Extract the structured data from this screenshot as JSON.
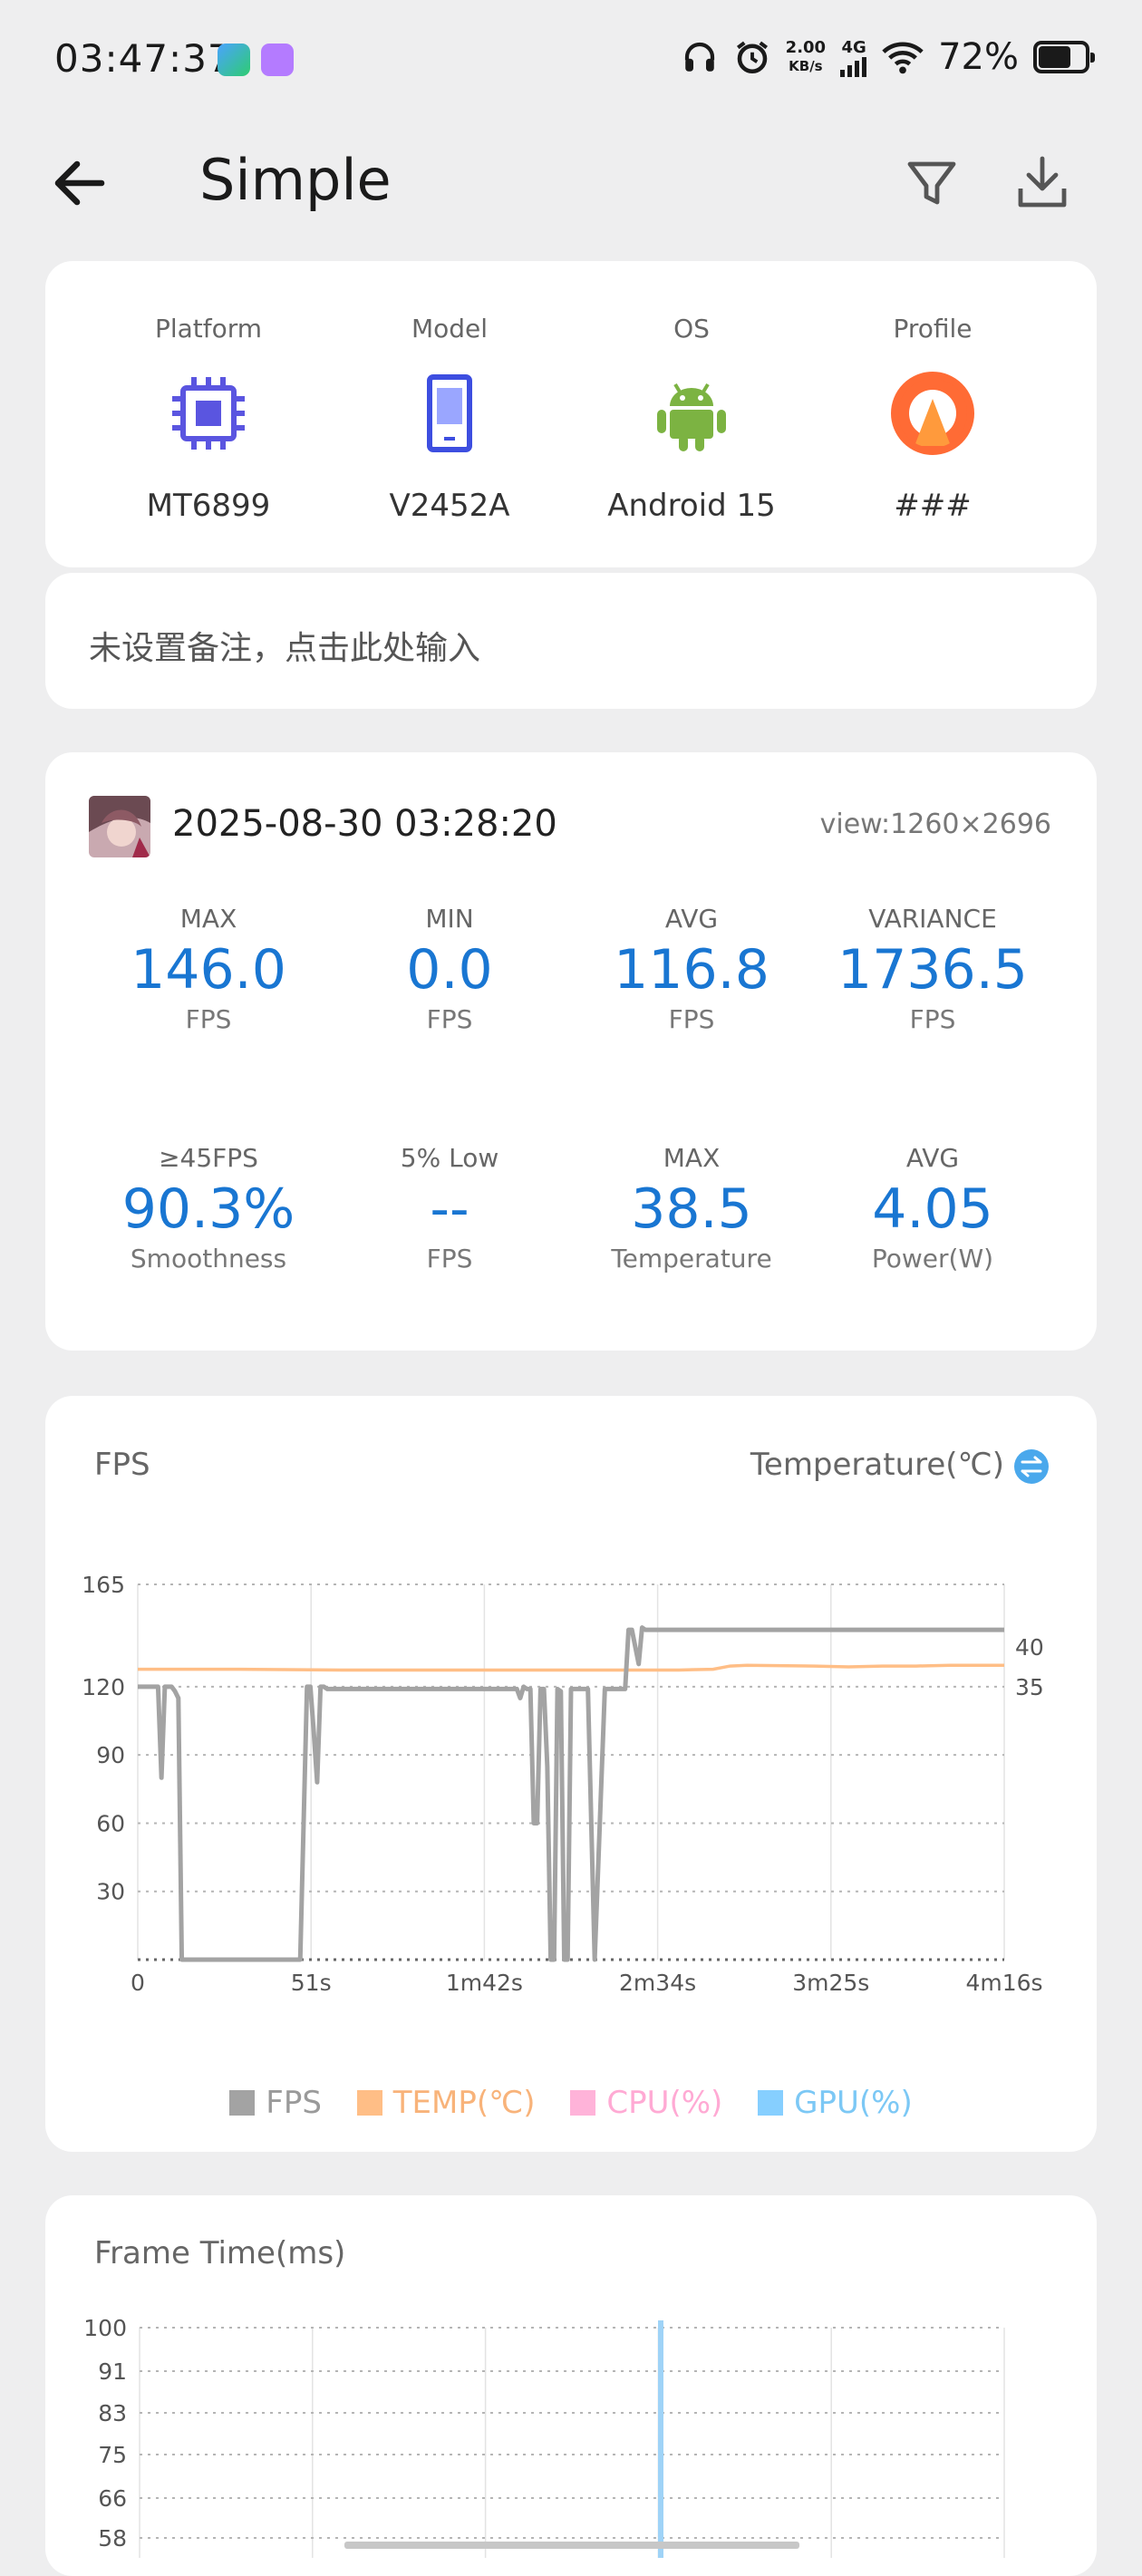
{
  "status_bar": {
    "time": "03:47:37",
    "net_speed_value": "2.00",
    "net_speed_unit": "KB/s",
    "network": "4G",
    "battery": "72%",
    "battery_level": 0.72
  },
  "app_bar": {
    "title": "Simple"
  },
  "device_info": [
    {
      "label": "Platform",
      "value": "MT6899",
      "icon": "chip-icon"
    },
    {
      "label": "Model",
      "value": "V2452A",
      "icon": "phone-icon"
    },
    {
      "label": "OS",
      "value": "Android 15",
      "icon": "android-icon"
    },
    {
      "label": "Profile",
      "value": "###",
      "icon": "profile-icon"
    }
  ],
  "note": {
    "placeholder": "未设置备注，点击此处输入"
  },
  "session": {
    "datetime": "2025-08-30 03:28:20",
    "view": "view:1260×2696",
    "stats": [
      {
        "label": "MAX",
        "value": "146.0",
        "unit": "FPS"
      },
      {
        "label": "MIN",
        "value": "0.0",
        "unit": "FPS"
      },
      {
        "label": "AVG",
        "value": "116.8",
        "unit": "FPS"
      },
      {
        "label": "VARIANCE",
        "value": "1736.5",
        "unit": "FPS"
      },
      {
        "label": "≥45FPS",
        "value": "90.3%",
        "unit": "Smoothness"
      },
      {
        "label": "5% Low",
        "value": "--",
        "unit": "FPS"
      },
      {
        "label": "MAX",
        "value": "38.5",
        "unit": "Temperature"
      },
      {
        "label": "AVG",
        "value": "4.05",
        "unit": "Power(W)"
      }
    ]
  },
  "fps_chart": {
    "title": "FPS",
    "right_title": "Temperature(℃)",
    "legend": [
      {
        "label": "FPS",
        "color": "#a3a3a3"
      },
      {
        "label": "TEMP(℃)",
        "color": "#ffbe86"
      },
      {
        "label": "CPU(%)",
        "color": "#ffb3d9"
      },
      {
        "label": "GPU(%)",
        "color": "#86cfff"
      }
    ]
  },
  "frame_chart": {
    "title": "Frame Time(ms)"
  },
  "chart_data": [
    {
      "type": "line",
      "title": "FPS",
      "x_ticks": [
        "0",
        "51s",
        "1m42s",
        "2m34s",
        "3m25s",
        "4m16s"
      ],
      "x_range_s": [
        0,
        256
      ],
      "y_ticks": [
        165,
        120,
        90,
        60,
        30
      ],
      "ylim": [
        0,
        165
      ],
      "y2_ticks": [
        40,
        35
      ],
      "y2label": "Temperature(℃)",
      "series": [
        {
          "name": "FPS",
          "color": "#a3a3a3",
          "x": [
            0,
            6,
            7,
            8,
            9,
            10,
            11,
            12,
            13,
            14,
            15,
            17,
            20,
            25,
            30,
            35,
            40,
            45,
            48,
            49,
            50,
            51,
            52,
            53,
            54,
            55,
            56,
            58,
            60,
            70,
            80,
            90,
            100,
            110,
            112,
            113,
            114,
            115,
            116,
            117,
            118,
            119,
            120,
            121,
            122,
            123,
            124,
            125,
            126,
            127,
            128,
            129,
            130,
            131,
            132,
            133,
            135,
            138,
            140,
            141,
            142,
            143,
            144,
            145,
            146,
            148,
            149,
            150,
            151,
            152,
            153,
            155,
            158,
            160,
            170,
            180,
            190,
            200,
            210,
            220,
            230,
            240,
            250,
            256
          ],
          "y": [
            120,
            120,
            80,
            120,
            120,
            120,
            118,
            115,
            0,
            0,
            0,
            0,
            0,
            0,
            0,
            0,
            0,
            0,
            0,
            60,
            120,
            120,
            100,
            78,
            120,
            120,
            119,
            119,
            119,
            119,
            119,
            119,
            119,
            119,
            119,
            115,
            120,
            119,
            119,
            60,
            60,
            119,
            119,
            85,
            0,
            0,
            119,
            118,
            0,
            0,
            119,
            119,
            119,
            119,
            119,
            119,
            0,
            119,
            119,
            119,
            119,
            119,
            119,
            145,
            145,
            130,
            146,
            145,
            145,
            145,
            145,
            145,
            145,
            145,
            145,
            145,
            145,
            145,
            145,
            145,
            145,
            145,
            145,
            145
          ]
        },
        {
          "name": "TEMP(℃)",
          "color": "#ffbe86",
          "x": [
            0,
            30,
            60,
            120,
            160,
            170,
            175,
            180,
            200,
            210,
            220,
            230,
            240,
            256
          ],
          "y_celsius": [
            37.2,
            37.2,
            37.1,
            37.1,
            37.1,
            37.2,
            37.6,
            37.7,
            37.6,
            37.5,
            37.6,
            37.6,
            37.7,
            37.7
          ]
        }
      ]
    },
    {
      "type": "line",
      "title": "Frame Time(ms)",
      "y_ticks": [
        100,
        91,
        83,
        75,
        66,
        58
      ]
    }
  ]
}
